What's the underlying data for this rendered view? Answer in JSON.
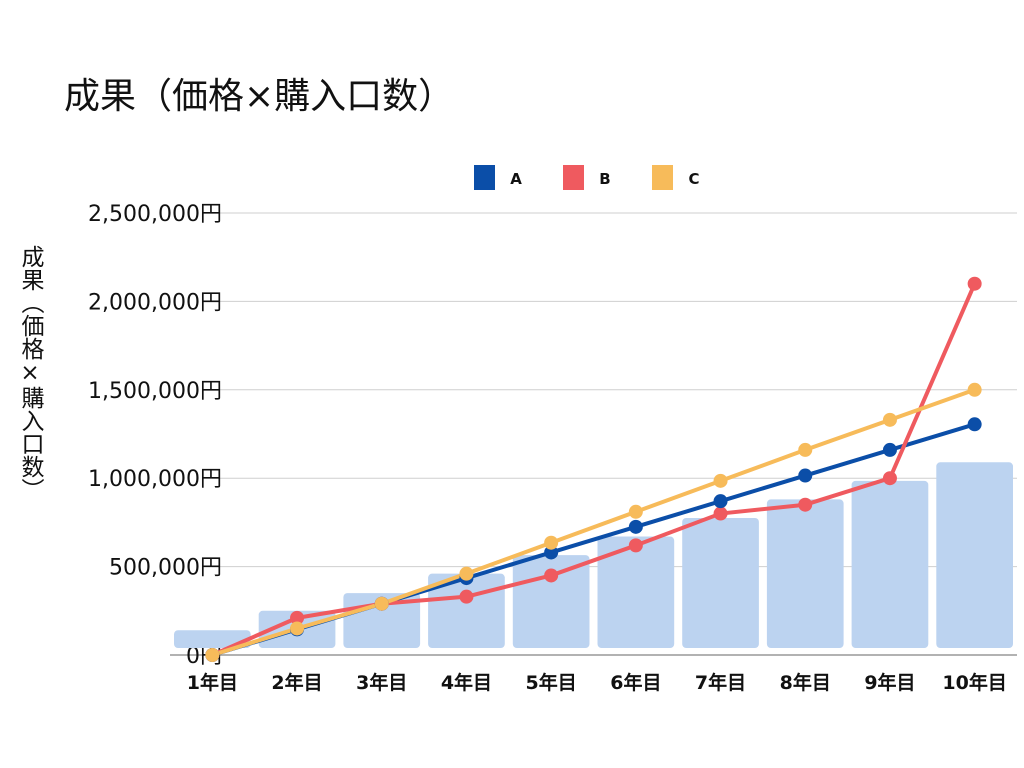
{
  "chart_data": {
    "type": "line",
    "title": "成果（価格×購入口数）",
    "ylabel": "成果（価格×購入口数）",
    "xlabel": "",
    "categories": [
      "1年目",
      "2年目",
      "3年目",
      "4年目",
      "5年目",
      "6年目",
      "7年目",
      "8年目",
      "9年目",
      "10年目"
    ],
    "ylim": [
      0,
      2500000
    ],
    "yticks": [
      0,
      500000,
      1000000,
      1500000,
      2000000,
      2500000
    ],
    "ytick_labels": [
      "0円",
      "500,000円",
      "1,000,000円",
      "1,500,000円",
      "2,000,000円",
      "2,500,000円"
    ],
    "grid": true,
    "legend_position": "top",
    "background_bars": {
      "color": "#bcd3f0",
      "values": [
        140000,
        250000,
        350000,
        460000,
        565000,
        670000,
        775000,
        880000,
        985000,
        1090000
      ]
    },
    "series": [
      {
        "name": "A",
        "color": "#0b4ea8",
        "values": [
          0,
          145000,
          290000,
          435000,
          580000,
          725000,
          870000,
          1015000,
          1160000,
          1305000
        ]
      },
      {
        "name": "B",
        "color": "#ef5a5f",
        "values": [
          0,
          210000,
          290000,
          330000,
          450000,
          620000,
          800000,
          850000,
          1000000,
          2100000
        ]
      },
      {
        "name": "C",
        "color": "#f7bb5a",
        "values": [
          0,
          150000,
          290000,
          460000,
          635000,
          810000,
          985000,
          1160000,
          1330000,
          1500000
        ]
      }
    ]
  }
}
